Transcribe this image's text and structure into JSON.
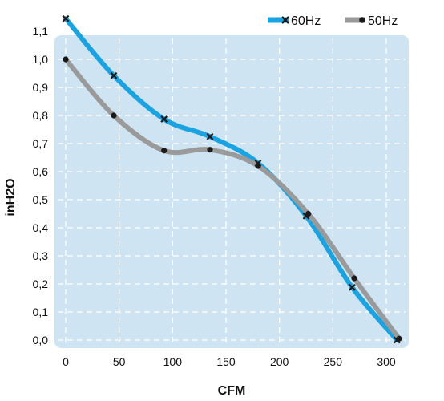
{
  "chart_data": {
    "type": "line",
    "xlabel": "CFM",
    "ylabel": "inH2O",
    "xlim": [
      0,
      310
    ],
    "ylim": [
      0,
      1.15
    ],
    "x_ticks": [
      0,
      50,
      100,
      150,
      200,
      250,
      300
    ],
    "y_ticks": [
      0.0,
      0.1,
      0.2,
      0.3,
      0.4,
      0.5,
      0.6,
      0.7,
      0.8,
      0.9,
      1.0,
      1.1
    ],
    "y_tick_labels": [
      "0,0",
      "0,1",
      "0,2",
      "0,3",
      "0,4",
      "0,5",
      "0,6",
      "0,7",
      "0,8",
      "0,9",
      "1,0",
      "1,1"
    ],
    "grid": true,
    "plot_background": "#cfe4f2",
    "legend_position": "top-right",
    "series": [
      {
        "name": "60Hz",
        "color": "#1aa3e0",
        "marker": "x",
        "x": [
          0,
          45,
          92,
          135,
          180,
          225,
          268,
          310
        ],
        "y": [
          1.145,
          0.942,
          0.787,
          0.725,
          0.63,
          0.442,
          0.188,
          0.0
        ]
      },
      {
        "name": "50Hz",
        "color": "#9a9a9a",
        "marker": "dot",
        "x": [
          0,
          45,
          92,
          135,
          180,
          227,
          270,
          312
        ],
        "y": [
          1.0,
          0.8,
          0.675,
          0.678,
          0.62,
          0.45,
          0.22,
          0.005
        ]
      }
    ]
  }
}
